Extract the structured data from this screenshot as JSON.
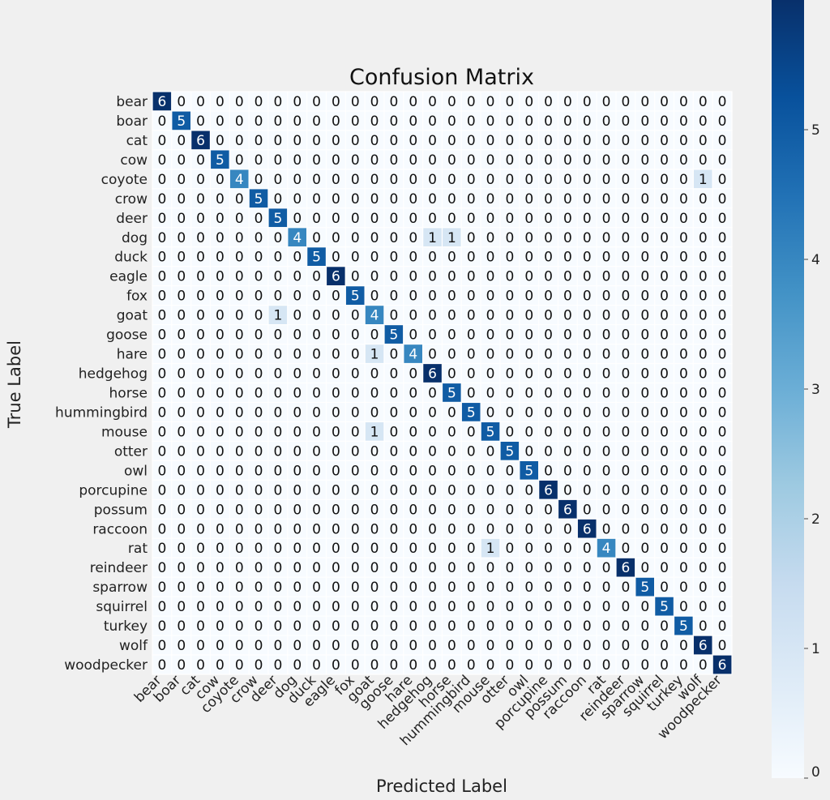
{
  "chart_data": {
    "type": "heatmap",
    "title": "Confusion Matrix",
    "xlabel": "Predicted Label",
    "ylabel": "True Label",
    "labels": [
      "bear",
      "boar",
      "cat",
      "cow",
      "coyote",
      "crow",
      "deer",
      "dog",
      "duck",
      "eagle",
      "fox",
      "goat",
      "goose",
      "hare",
      "hedgehog",
      "horse",
      "hummingbird",
      "mouse",
      "otter",
      "owl",
      "porcupine",
      "possum",
      "raccoon",
      "rat",
      "reindeer",
      "sparrow",
      "squirrel",
      "turkey",
      "wolf",
      "woodpecker"
    ],
    "diagonal": [
      6,
      5,
      6,
      5,
      4,
      5,
      5,
      4,
      5,
      6,
      5,
      4,
      5,
      4,
      6,
      5,
      5,
      5,
      5,
      5,
      6,
      6,
      6,
      4,
      6,
      5,
      5,
      5,
      6,
      6
    ],
    "off_diagonal": [
      {
        "row": 4,
        "col": 28,
        "value": 1
      },
      {
        "row": 7,
        "col": 14,
        "value": 1
      },
      {
        "row": 7,
        "col": 15,
        "value": 1
      },
      {
        "row": 11,
        "col": 6,
        "value": 1
      },
      {
        "row": 13,
        "col": 11,
        "value": 1
      },
      {
        "row": 17,
        "col": 11,
        "value": 1
      },
      {
        "row": 23,
        "col": 17,
        "value": 1
      }
    ],
    "colorbar": {
      "min": 0,
      "max": 6,
      "ticks": [
        0,
        1,
        2,
        3,
        4,
        5
      ]
    },
    "colors": {
      "low": "#f7fbff",
      "high": "#08306b",
      "background": "#f0f0f0",
      "grid": "#ffffff"
    }
  }
}
